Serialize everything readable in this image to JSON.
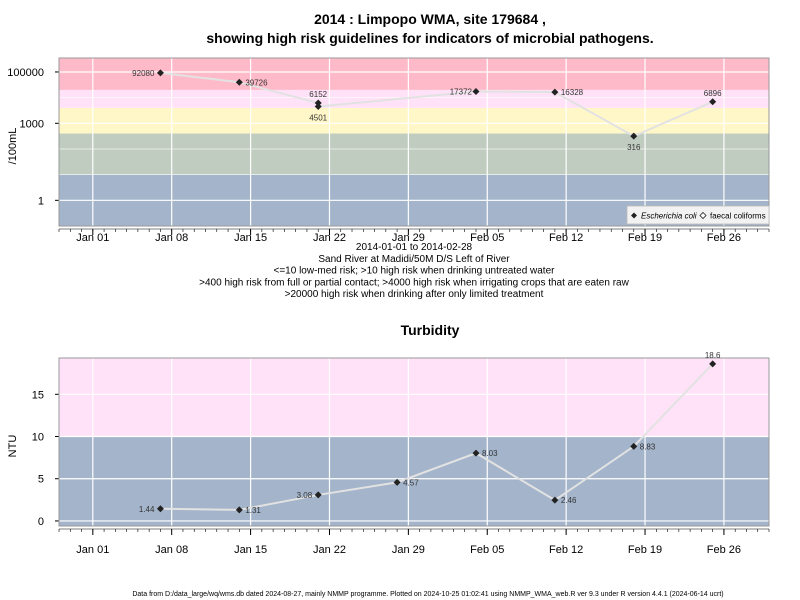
{
  "chart_data": [
    {
      "type": "line",
      "title": "2014 : Limpopo WMA, site 179684 ,",
      "subtitle": "showing high risk guidelines for indicators of microbial pathogens.",
      "ylabel": "/100mL",
      "yscale": "log",
      "ylim": [
        0.1,
        350000
      ],
      "y_ticks": [
        "100000",
        "1000",
        "1"
      ],
      "x_ticks": [
        "Jan 01",
        "Jan 08",
        "Jan 15",
        "Jan 22",
        "Jan 29",
        "Feb 05",
        "Feb 12",
        "Feb 19",
        "Feb 26"
      ],
      "x_tick_dates": [
        "2014-01-01",
        "2014-01-08",
        "2014-01-15",
        "2014-01-22",
        "2014-01-29",
        "2014-02-05",
        "2014-02-12",
        "2014-02-19",
        "2014-02-26"
      ],
      "xlim": [
        "2013-12-29",
        "2014-03-02"
      ],
      "bands": [
        {
          "from": 0.1,
          "to": 10,
          "color": "#a3b4cb"
        },
        {
          "from": 10,
          "to": 400,
          "color": "#c0ccc0"
        },
        {
          "from": 400,
          "to": 4000,
          "color": "#fff7c7"
        },
        {
          "from": 4000,
          "to": 20000,
          "color": "#ffe2f7"
        },
        {
          "from": 20000,
          "to": 350000,
          "color": "#ffbac9"
        }
      ],
      "series": [
        {
          "name": "Escherichia coli",
          "marker": "diamond",
          "points": [
            {
              "x": "2014-01-07",
              "y": 92080,
              "label": "92080"
            },
            {
              "x": "2014-01-14",
              "y": 39726,
              "label": "39726"
            },
            {
              "x": "2014-01-21",
              "y": 6152,
              "label": "6152"
            },
            {
              "x": "2014-01-21",
              "y": 4501,
              "label": "4501"
            },
            {
              "x": "2014-02-04",
              "y": 17372,
              "label": "17372"
            },
            {
              "x": "2014-02-11",
              "y": 16328,
              "label": "16328"
            },
            {
              "x": "2014-02-18",
              "y": 316,
              "label": "316"
            },
            {
              "x": "2014-02-25",
              "y": 6896,
              "label": "6896"
            }
          ]
        },
        {
          "name": "faecal coliforms",
          "marker": "open-diamond",
          "points": []
        }
      ],
      "legend": "bottom-right",
      "caption": [
        "2014-01-01 to 2014-02-28",
        "Sand River at Madidi/50M D/S Left of River",
        "<=10 low-med risk; >10 high risk when drinking untreated water",
        ">400 high risk from full or partial contact; >4000 high risk when irrigating crops that are eaten raw",
        ">20000 high risk when drinking after only limited treatment"
      ],
      "grid": true
    },
    {
      "type": "line",
      "title": "Turbidity",
      "ylabel": "NTU",
      "ylim": [
        -0.6,
        19.3
      ],
      "y_ticks": [
        "0",
        "5",
        "10",
        "15"
      ],
      "x_ticks": [
        "Jan 01",
        "Jan 08",
        "Jan 15",
        "Jan 22",
        "Jan 29",
        "Feb 05",
        "Feb 12",
        "Feb 19",
        "Feb 26"
      ],
      "x_tick_dates": [
        "2014-01-01",
        "2014-01-08",
        "2014-01-15",
        "2014-01-22",
        "2014-01-29",
        "2014-02-05",
        "2014-02-12",
        "2014-02-19",
        "2014-02-26"
      ],
      "xlim": [
        "2013-12-29",
        "2014-03-02"
      ],
      "bands": [
        {
          "from": -0.6,
          "to": 10,
          "color": "#a3b4cb"
        },
        {
          "from": 10,
          "to": 19.3,
          "color": "#ffe2f7"
        }
      ],
      "series": [
        {
          "marker": "diamond",
          "points": [
            {
              "x": "2014-01-07",
              "y": 1.44,
              "label": "1.44"
            },
            {
              "x": "2014-01-14",
              "y": 1.31,
              "label": "1.31"
            },
            {
              "x": "2014-01-21",
              "y": 3.08,
              "label": "3.08"
            },
            {
              "x": "2014-01-28",
              "y": 4.57,
              "label": "4.57"
            },
            {
              "x": "2014-02-04",
              "y": 8.03,
              "label": "8.03"
            },
            {
              "x": "2014-02-11",
              "y": 2.46,
              "label": "2.46"
            },
            {
              "x": "2014-02-18",
              "y": 8.83,
              "label": "8.83"
            },
            {
              "x": "2014-02-25",
              "y": 18.6,
              "label": "18.6"
            }
          ]
        }
      ],
      "grid": true
    }
  ],
  "footer": "Data from D:/data_large/wq/wms.db dated 2024-08-27, mainly NMMP programme. Plotted on 2024-10-25 01:02:41 using NMMP_WMA_web.R ver 9.3 under R version 4.4.1 (2024-06-14 ucrt)"
}
